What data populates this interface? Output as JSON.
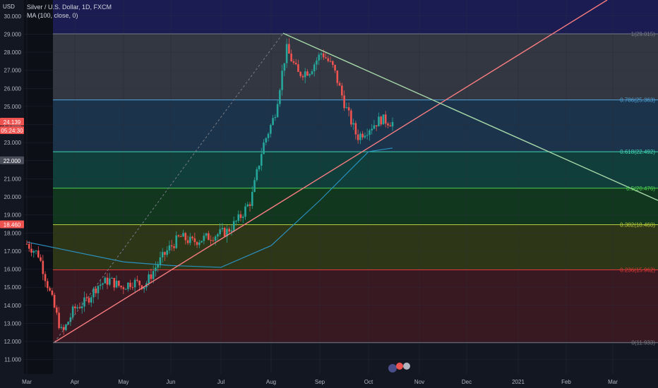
{
  "header": {
    "currency": "USD",
    "title": "Silver / U.S. Dollar, 1D, FXCM",
    "indicator": "MA (100, close, 0)"
  },
  "colors": {
    "background": "#131722",
    "up": "#26a69a",
    "down": "#ef5350",
    "ma": "#2a8fbd",
    "trend_up": "#f77c80",
    "trend_down": "#a5d6a7",
    "gridline": "#2a2e39"
  },
  "price_tags": [
    {
      "value": "24.139",
      "color": "#ef5350"
    },
    {
      "value": "05:24:30",
      "color": "#ef5350"
    },
    {
      "value": "22.000",
      "color": "#4a4e5a"
    },
    {
      "value": "18.460",
      "color": "#ef5350"
    }
  ],
  "chart_data": {
    "type": "candlestick",
    "title": "Silver / U.S. Dollar, 1D, FXCM",
    "y_ticks": [
      "11.000",
      "12.000",
      "13.000",
      "14.000",
      "15.000",
      "16.000",
      "17.000",
      "18.000",
      "19.000",
      "20.000",
      "21.000",
      "22.000",
      "23.000",
      "24.000",
      "25.000",
      "26.000",
      "27.000",
      "28.000",
      "29.000",
      "30.000"
    ],
    "ylim": [
      10.8,
      30.2
    ],
    "x_ticks": [
      "Mar",
      "Apr",
      "May",
      "Jun",
      "Jul",
      "Aug",
      "Sep",
      "Oct",
      "Nov",
      "Dec",
      "2021",
      "Feb",
      "Mar"
    ],
    "fib_levels": [
      {
        "ratio": 1,
        "price": 29.015,
        "label": "1(29.015)",
        "color": "#787b86",
        "fill": "#3a3d48"
      },
      {
        "ratio": 0.786,
        "price": 25.363,
        "label": "0.786(25.363)",
        "color": "#4fa3d9",
        "fill": "#1d3a52"
      },
      {
        "ratio": 0.618,
        "price": 22.492,
        "label": "0.618(22.492)",
        "color": "#3ed6b0",
        "fill": "#10453f"
      },
      {
        "ratio": 0.5,
        "price": 20.476,
        "label": "0.5(20.476)",
        "color": "#4ccf50",
        "fill": "#123d1e"
      },
      {
        "ratio": 0.382,
        "price": 18.46,
        "label": "0.382(18.460)",
        "color": "#b8c93a",
        "fill": "#343c16"
      },
      {
        "ratio": 0.236,
        "price": 15.962,
        "label": "0.236(15.962)",
        "color": "#e53935",
        "fill": "#3f1a22"
      },
      {
        "ratio": 0,
        "price": 11.933,
        "label": "0(11.933)",
        "color": "#787b86",
        "fill": "#131722"
      }
    ],
    "ohlc_weekly_close": [
      {
        "date": "Mar",
        "close": 17.4
      },
      {
        "date": "Mar",
        "close": 16.8
      },
      {
        "date": "Mar",
        "close": 14.6
      },
      {
        "date": "Mar",
        "close": 12.4
      },
      {
        "date": "Mar",
        "close": 13.8
      },
      {
        "date": "Apr",
        "close": 14.2
      },
      {
        "date": "Apr",
        "close": 15.1
      },
      {
        "date": "Apr",
        "close": 15.4
      },
      {
        "date": "Apr",
        "close": 15.0
      },
      {
        "date": "May",
        "close": 15.3
      },
      {
        "date": "May",
        "close": 15.1
      },
      {
        "date": "May",
        "close": 16.2
      },
      {
        "date": "May",
        "close": 17.1
      },
      {
        "date": "Jun",
        "close": 17.8
      },
      {
        "date": "Jun",
        "close": 17.5
      },
      {
        "date": "Jun",
        "close": 17.7
      },
      {
        "date": "Jun",
        "close": 17.9
      },
      {
        "date": "Jul",
        "close": 18.1
      },
      {
        "date": "Jul",
        "close": 18.8
      },
      {
        "date": "Jul",
        "close": 19.8
      },
      {
        "date": "Jul",
        "close": 22.8
      },
      {
        "date": "Aug",
        "close": 24.5
      },
      {
        "date": "Aug",
        "close": 28.2
      },
      {
        "date": "Aug",
        "close": 26.8
      },
      {
        "date": "Aug",
        "close": 27.0
      },
      {
        "date": "Sep",
        "close": 28.0
      },
      {
        "date": "Sep",
        "close": 27.1
      },
      {
        "date": "Sep",
        "close": 25.0
      },
      {
        "date": "Sep",
        "close": 23.3
      },
      {
        "date": "Oct",
        "close": 23.8
      },
      {
        "date": "Oct",
        "close": 24.3
      },
      {
        "date": "Oct",
        "close": 24.1
      }
    ],
    "ma100": [
      {
        "date": "Mar",
        "value": 17.5
      },
      {
        "date": "May",
        "value": 16.4
      },
      {
        "date": "Jun",
        "value": 16.2
      },
      {
        "date": "Jul",
        "value": 16.1
      },
      {
        "date": "Aug",
        "value": 17.3
      },
      {
        "date": "Sep",
        "value": 19.8
      },
      {
        "date": "Oct",
        "value": 22.5
      }
    ]
  }
}
